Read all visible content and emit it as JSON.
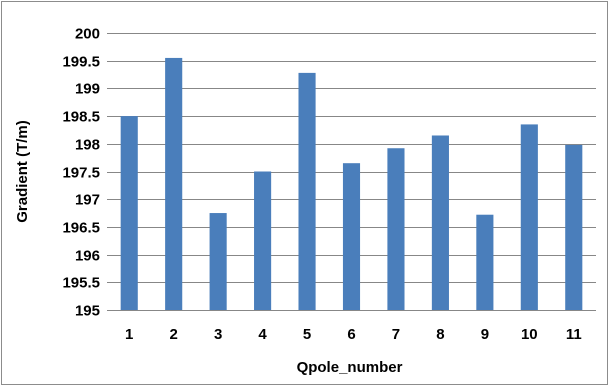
{
  "chart_data": {
    "type": "bar",
    "categories": [
      "1",
      "2",
      "3",
      "4",
      "5",
      "6",
      "7",
      "8",
      "9",
      "10",
      "11"
    ],
    "values": [
      198.5,
      199.55,
      196.75,
      197.5,
      199.28,
      197.65,
      197.92,
      198.15,
      196.72,
      198.35,
      197.98
    ],
    "xlabel": "Qpole_number",
    "ylabel": "Gradient (T/m)",
    "ylim": [
      195,
      200
    ],
    "yticks": [
      "195",
      "195.5",
      "196",
      "196.5",
      "197",
      "197.5",
      "198",
      "198.5",
      "199",
      "199.5",
      "200"
    ],
    "grid": true,
    "bar_color": "#4a7ebb",
    "grid_color": "#878787"
  }
}
